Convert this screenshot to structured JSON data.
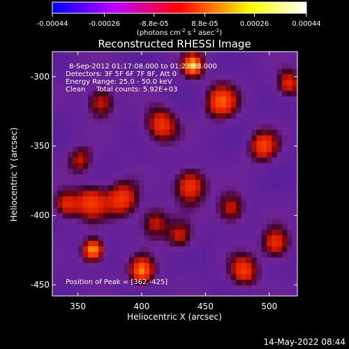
{
  "colorbar": {
    "tick_labels": [
      "-0.00044",
      "-0.00026",
      "-8.8e-05",
      "8.8e-05",
      "0.00026",
      "0.00044"
    ],
    "tick_values": [
      -0.00044,
      -0.00026,
      -8.8e-05,
      8.8e-05,
      0.00026,
      0.00044
    ],
    "range": [
      -0.00044,
      0.00044
    ],
    "unit_label": {
      "prefix": "(photons cm",
      "sup1": "-2",
      "mid1": " s",
      "sup2": "-1",
      "mid2": " asec",
      "sup3": "-2",
      "suffix": ")"
    },
    "colors": [
      "#0000ff",
      "#ff00ff",
      "#ff0000",
      "#ffff00",
      "#ffffff"
    ]
  },
  "chart_data": {
    "type": "heatmap",
    "title": "Reconstructed RHESSI Image",
    "xlabel": "Heliocentric X (arcsec)",
    "ylabel": "Heliocentric Y (arcsec)",
    "xlim": [
      330,
      522
    ],
    "ylim": [
      -458,
      -282
    ],
    "x_ticks": [
      350,
      400,
      450,
      500
    ],
    "x_tick_labels": [
      "350",
      "400",
      "450",
      "500"
    ],
    "y_ticks": [
      -300,
      -350,
      -400,
      -450
    ],
    "y_tick_labels": [
      "-300",
      "-350",
      "-400",
      "-450"
    ],
    "annotations": [
      "8-Sep-2012 01:17:08.000 to 01:23:08.000",
      "Detectors: 3F 5F 6F 7F 8F, Att 0",
      "Energy Range: 25.0 - 50.0 keV",
      "Clean     Total counts: 5.92E+03"
    ],
    "peak_label": "Position of Peak = [362,-425]",
    "peak": [
      362,
      -425
    ],
    "blobs": [
      {
        "x": 362,
        "y": -425,
        "level": 0.00044,
        "r": 6
      },
      {
        "x": 440,
        "y": -292,
        "level": 0.0004,
        "r": 6
      },
      {
        "x": 400,
        "y": -440,
        "level": 0.00036,
        "r": 7
      },
      {
        "x": 462,
        "y": -318,
        "level": 0.00032,
        "r": 9
      },
      {
        "x": 415,
        "y": -335,
        "level": 0.0003,
        "r": 9
      },
      {
        "x": 495,
        "y": -350,
        "level": 0.0003,
        "r": 8
      },
      {
        "x": 438,
        "y": -378,
        "level": 0.00032,
        "r": 9
      },
      {
        "x": 385,
        "y": -388,
        "level": 0.0003,
        "r": 9
      },
      {
        "x": 360,
        "y": -390,
        "level": 0.00028,
        "r": 9
      },
      {
        "x": 340,
        "y": -392,
        "level": 0.00026,
        "r": 7
      },
      {
        "x": 368,
        "y": -318,
        "level": 0.00026,
        "r": 8
      },
      {
        "x": 352,
        "y": -360,
        "level": 0.00022,
        "r": 7
      },
      {
        "x": 410,
        "y": -405,
        "level": 0.00024,
        "r": 8
      },
      {
        "x": 505,
        "y": -420,
        "level": 0.0003,
        "r": 8
      },
      {
        "x": 480,
        "y": -440,
        "level": 0.0003,
        "r": 8
      },
      {
        "x": 470,
        "y": -395,
        "level": 0.00026,
        "r": 8
      },
      {
        "x": 515,
        "y": -305,
        "level": 0.00028,
        "r": 7
      },
      {
        "x": 430,
        "y": -415,
        "level": 0.00022,
        "r": 7
      }
    ]
  },
  "timestamp": "14-May-2022 08:44"
}
